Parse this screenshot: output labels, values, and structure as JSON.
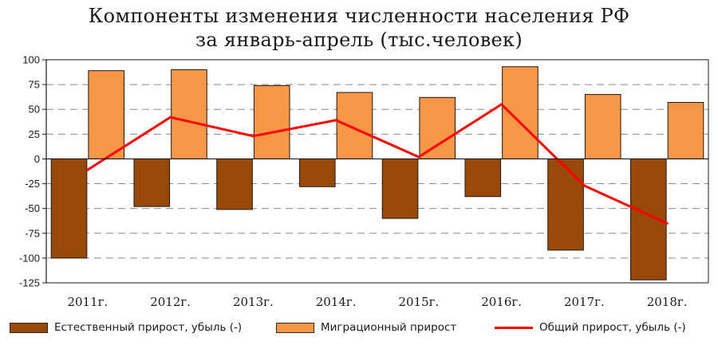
{
  "chart_data": {
    "type": "bar",
    "title": "Компоненты изменения численности населения РФ",
    "subtitle": "за январь-апрель (тыс.человек)",
    "categories": [
      "2011г.",
      "2012г.",
      "2013г.",
      "2014г.",
      "2015г.",
      "2016г.",
      "2017г.",
      "2018г."
    ],
    "series": [
      {
        "name": "Естественный прирост, убыль (-)",
        "type": "bar",
        "color": "#984807",
        "values": [
          -100,
          -48,
          -51,
          -28,
          -60,
          -38,
          -92,
          -122
        ]
      },
      {
        "name": "Миграционный прирост",
        "type": "bar",
        "color": "#F79646",
        "values": [
          89,
          90,
          74,
          67,
          62,
          93,
          65,
          57
        ]
      },
      {
        "name": "Общий прирост, убыль (-)",
        "type": "line",
        "color": "#FF0000",
        "values": [
          -11,
          42,
          23,
          39,
          2,
          55,
          -27,
          -65
        ]
      }
    ],
    "y_ticks": [
      100,
      75,
      50,
      25,
      0,
      -25,
      -50,
      -75,
      -100,
      -125
    ],
    "ylim": [
      -125,
      100
    ],
    "grid": "horizontal dashed",
    "legend_position": "bottom"
  }
}
